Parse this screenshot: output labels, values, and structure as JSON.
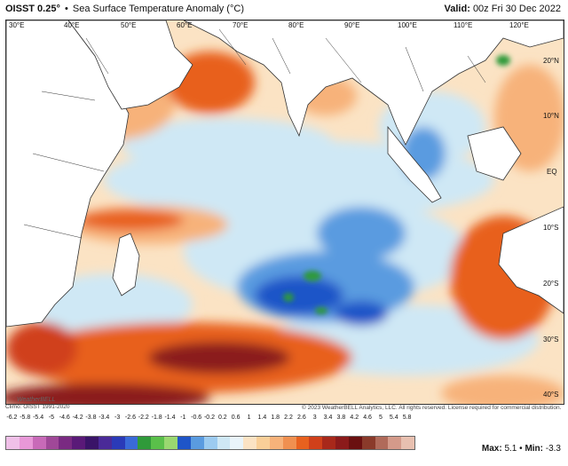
{
  "header": {
    "model": "OISST 0.25°",
    "separator": "•",
    "product": "Sea Surface Temperature Anomaly (°C)",
    "valid_label": "Valid:",
    "valid_time": "00z Fri 30 Dec 2022"
  },
  "map": {
    "lon_labels": [
      "30°E",
      "40°E",
      "50°E",
      "60°E",
      "70°E",
      "80°E",
      "90°E",
      "100°E",
      "110°E",
      "120°E"
    ],
    "lat_labels": [
      "20°N",
      "10°N",
      "EQ",
      "10°S",
      "20°S",
      "30°S",
      "40°S"
    ],
    "colors": {
      "strong_warm": "#8b1a1a",
      "warm": "#e8611f",
      "mild_warm": "#f7b27a",
      "neutral": "#fbe3c4",
      "mild_cool": "#cfe8f5",
      "cool": "#5a9be0",
      "strong_cool": "#1f55c8",
      "extreme_cool": "#2e9a3a",
      "land": "#ffffff",
      "coast": "#333333"
    }
  },
  "footer": {
    "climo": "Climo: OISST 1991-2020",
    "copyright": "© 2023 WeatherBELL Analytics, LLC. All rights reserved. License required for commercial distribution."
  },
  "colorbar": {
    "ticks": [
      "-6.2",
      "-5.8",
      "-5.4",
      "-5",
      "-4.6",
      "-4.2",
      "-3.8",
      "-3.4",
      "-3",
      "-2.6",
      "-2.2",
      "-1.8",
      "-1.4",
      "-1",
      "-0.6",
      "-0.2",
      "0.2",
      "0.6",
      "1",
      "1.4",
      "1.8",
      "2.2",
      "2.6",
      "3",
      "3.4",
      "3.8",
      "4.2",
      "4.6",
      "5",
      "5.4",
      "5.8"
    ],
    "colors": [
      "#f0c0e8",
      "#e898d8",
      "#c86ab8",
      "#a04898",
      "#7a2a82",
      "#5a1a78",
      "#3a1468",
      "#4a2a98",
      "#2a3ab8",
      "#3a6ad8",
      "#2f9a3a",
      "#5ac04a",
      "#9ad870",
      "#1f55c8",
      "#5a9be0",
      "#9ccbf0",
      "#cfe8f5",
      "#e9f4fa",
      "#fbe3c4",
      "#f9cf98",
      "#f7b27a",
      "#f09050",
      "#e8611f",
      "#d0401a",
      "#a8281a",
      "#8b1a1a",
      "#6a1010",
      "#8a3a2a",
      "#b06a5a",
      "#d49a8a",
      "#e8c0b0"
    ]
  },
  "stats": {
    "max_label": "Max:",
    "max_value": "5.1",
    "sep": "•",
    "min_label": "Min:",
    "min_value": "-3.3"
  },
  "logo_text": "WeatherBELL"
}
